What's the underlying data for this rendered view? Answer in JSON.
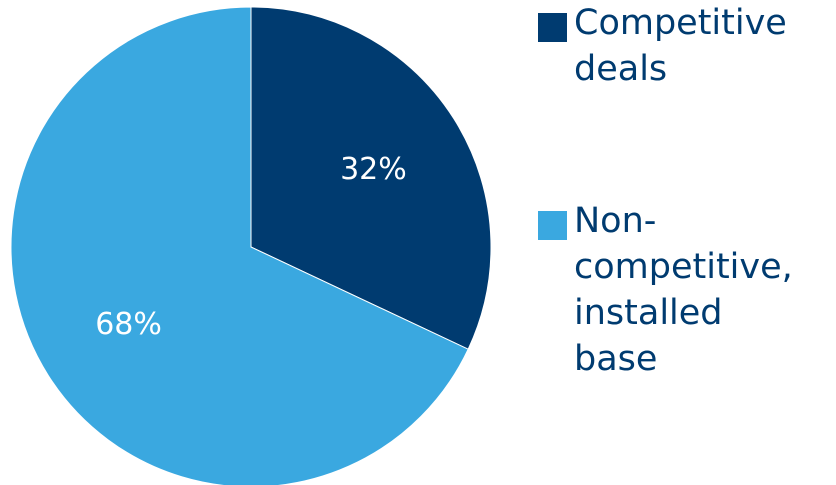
{
  "chart_data": {
    "type": "pie",
    "categories": [
      "Competitive\ndeals",
      "Non-\ncompetitive,\ninstalled\nbase"
    ],
    "values": [
      32,
      68
    ],
    "data_labels": [
      "32%",
      "68%"
    ],
    "colors": [
      "#003b70",
      "#3aa8e0"
    ],
    "legend_position": "right",
    "start_angle": "top, clockwise"
  }
}
